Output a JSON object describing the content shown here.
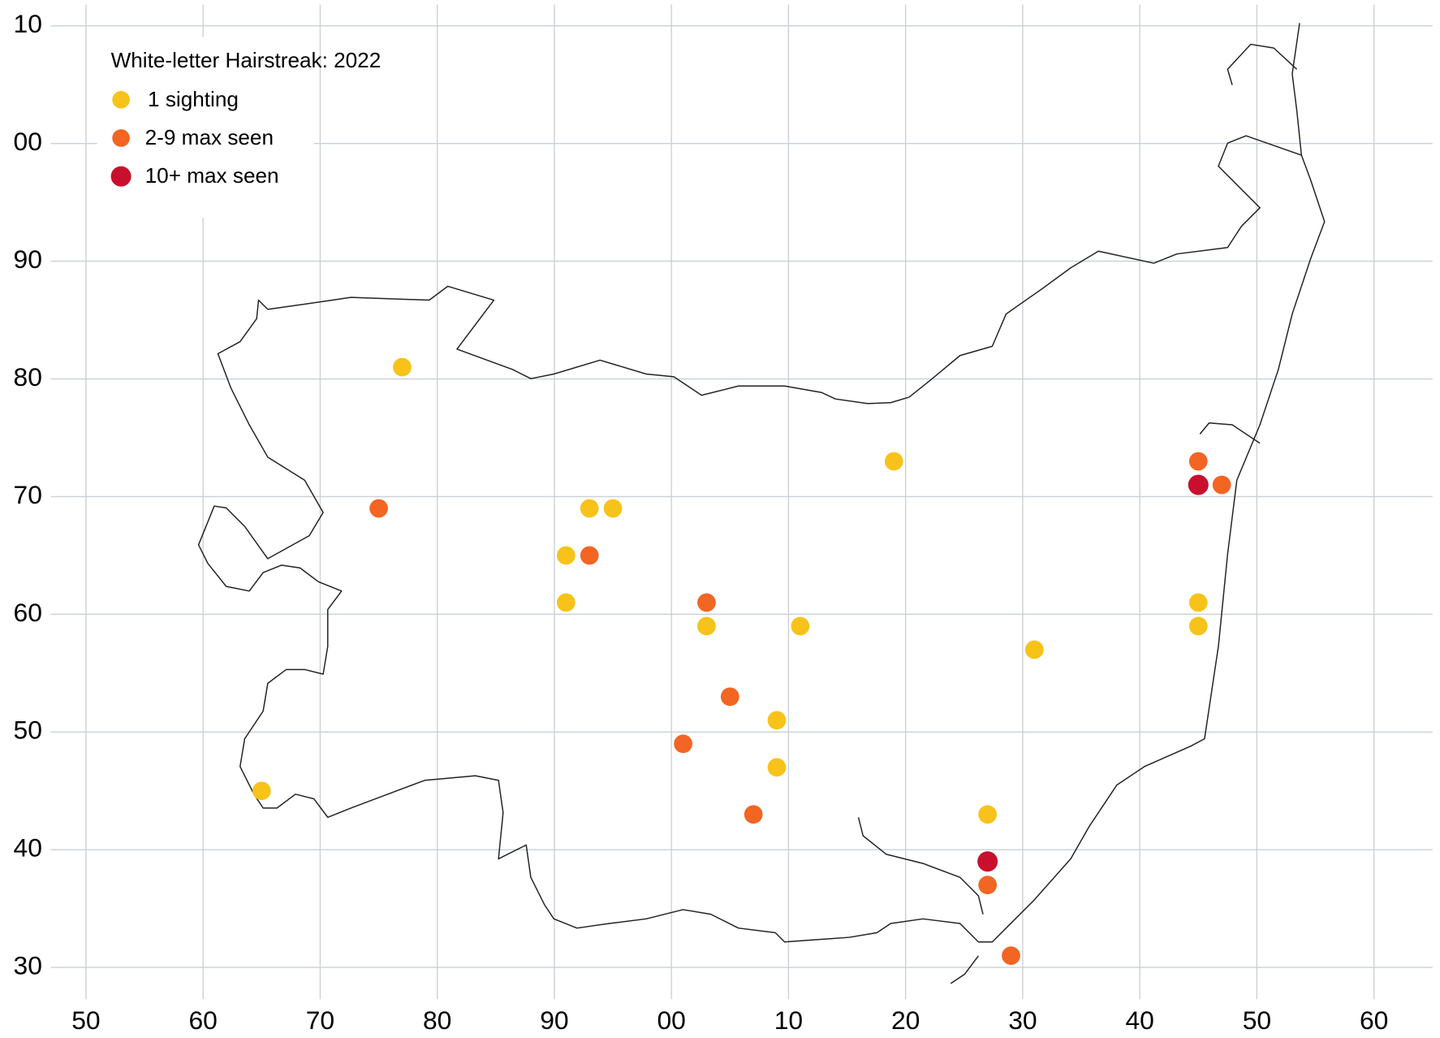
{
  "chart_data": {
    "type": "scatter",
    "legend_title": "White-letter Hairstreak:  2022",
    "legend": "top-left",
    "grid": true,
    "xlim": [
      47,
      165
    ],
    "ylim": [
      27.3,
      111.8
    ],
    "xticks": [
      50,
      60,
      70,
      80,
      90,
      {
        "value": 100,
        "label": "00"
      },
      {
        "value": 110,
        "label": "10"
      },
      {
        "value": 120,
        "label": "20"
      },
      {
        "value": 130,
        "label": "30"
      },
      {
        "value": 140,
        "label": "40"
      },
      {
        "value": 150,
        "label": "50"
      },
      {
        "value": 160,
        "label": "60"
      }
    ],
    "yticks": [
      30,
      40,
      50,
      60,
      70,
      80,
      90,
      {
        "value": 100,
        "label": "00"
      },
      {
        "value": 110,
        "label": "10"
      }
    ],
    "series": [
      {
        "name": "1 sighting",
        "color": "#f7c31a",
        "x": [
          77,
          65,
          119,
          93,
          95,
          91,
          91,
          103,
          111,
          109,
          109,
          131,
          127,
          145,
          145
        ],
        "y": [
          81,
          45,
          73,
          69,
          69,
          65,
          61,
          59,
          59,
          51,
          47,
          57,
          43,
          61,
          59
        ]
      },
      {
        "name": "2-9 max seen",
        "color": "#f26522",
        "x": [
          75,
          93,
          103,
          105,
          101,
          107,
          127,
          129,
          145,
          147
        ],
        "y": [
          69,
          65,
          61,
          53,
          49,
          43,
          37,
          31,
          73,
          71
        ]
      },
      {
        "name": "10+ max seen",
        "color": "#c8102e",
        "x": [
          145,
          127
        ],
        "y": [
          71,
          39
        ]
      }
    ]
  }
}
